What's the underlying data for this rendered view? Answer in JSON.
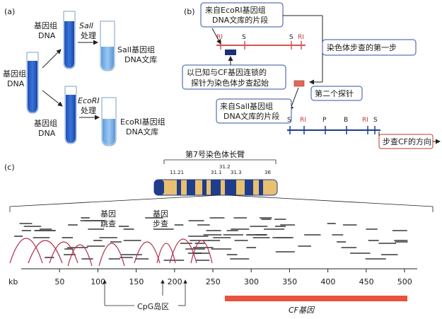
{
  "panel_a": {
    "label": "(a)",
    "genomic_dna_top": "基因组\nDNA",
    "genomic_dna_left": "基因组\nDNA",
    "genomic_dna_bottom": "基因组\nDNA",
    "sal_enzyme": "SalⅠ",
    "eco_enzyme": "EcoRⅠ",
    "treatment": "处理",
    "sal_library": "SalⅠ基因组\nDNA文库",
    "eco_library": "EcoRⅠ基因组\nDNA文库"
  },
  "panel_b": {
    "label": "(b)",
    "eco_fragment_box": "来自EcoRⅠ基因组\nDNA文库的片段",
    "sal_fragment_box": "来自SalⅠ基因组\nDNA文库的片段",
    "probe_start_box": "以已知与CF基因连锁的\n探针为染色体步查起始",
    "first_step_box": "染色体步查的第一步",
    "second_probe_box": "第二个探针",
    "direction_box": "步查CF的方向",
    "top_sites": [
      "RI",
      "S",
      "S",
      "RI"
    ],
    "bottom_sites": [
      "S",
      "RI",
      "P",
      "B",
      "RI",
      "S"
    ],
    "colors": {
      "red_line": "#d9534f",
      "blue_line": "#1b3f8f",
      "probe_blue": "#1b2f7a",
      "probe_red": "#e06a5a"
    }
  },
  "panel_c": {
    "label": "(c)",
    "chromosome_title": "第7号染色体长臂",
    "band_labels": [
      "11.21",
      "31.1",
      "31.2",
      "31.3",
      "36"
    ],
    "gene_jump": "基因\n跳查",
    "gene_walk": "基因\n步查",
    "axis_unit": "kb",
    "axis_ticks": [
      "50",
      "100",
      "150",
      "200",
      "250",
      "300",
      "350",
      "400",
      "450",
      "500"
    ],
    "cpg_label": "CpG岛区",
    "cf_gene_label": "CF基因",
    "colors": {
      "chromosome_blue": "#1f3d8a",
      "chromosome_yellow": "#e9c070",
      "cf_bar": "#e8533f",
      "arc": "#b0304a"
    }
  }
}
